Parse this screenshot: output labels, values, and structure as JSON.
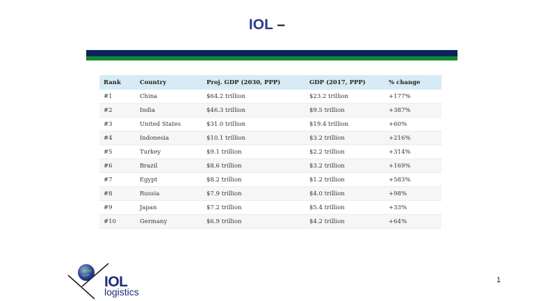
{
  "slide": {
    "title_brand": "IOL",
    "title_dash": "–",
    "page_number": "1"
  },
  "colors": {
    "band_navy": "#0b2460",
    "band_green": "#108a2e",
    "header_bg": "#d7ebf4",
    "brand": "#2e3a8c"
  },
  "table": {
    "headers": [
      "Rank",
      "Country",
      "Proj. GDP (2030, PPP)",
      "GDP (2017, PPP)",
      "% change"
    ],
    "rows": [
      [
        "#1",
        "China",
        "$64.2 trillion",
        "$23.2 trillion",
        "+177%"
      ],
      [
        "#2",
        "India",
        "$46.3 trillion",
        "$9.5 trillion",
        "+387%"
      ],
      [
        "#3",
        "United States",
        "$31.0 trillion",
        "$19.4 trillion",
        "+60%"
      ],
      [
        "#4",
        "Indonesia",
        "$10.1 trillion",
        "$3.2 trillion",
        "+216%"
      ],
      [
        "#5",
        "Turkey",
        "$9.1 trillion",
        "$2.2 trillion",
        "+314%"
      ],
      [
        "#6",
        "Brazil",
        "$8.6 trillion",
        "$3.2 trillion",
        "+169%"
      ],
      [
        "#7",
        "Egypt",
        "$8.2 trillion",
        "$1.2 trillion",
        "+583%"
      ],
      [
        "#8",
        "Russia",
        "$7.9 trillion",
        "$4.0 trillion",
        "+98%"
      ],
      [
        "#9",
        "Japan",
        "$7.2 trillion",
        "$5.4 trillion",
        "+33%"
      ],
      [
        "#10",
        "Germany",
        "$6.9 trillion",
        "$4.2 trillion",
        "+64%"
      ]
    ]
  },
  "logo": {
    "word": "IOL",
    "sub": "logistics",
    "icon": "globe-swoosh-icon"
  }
}
